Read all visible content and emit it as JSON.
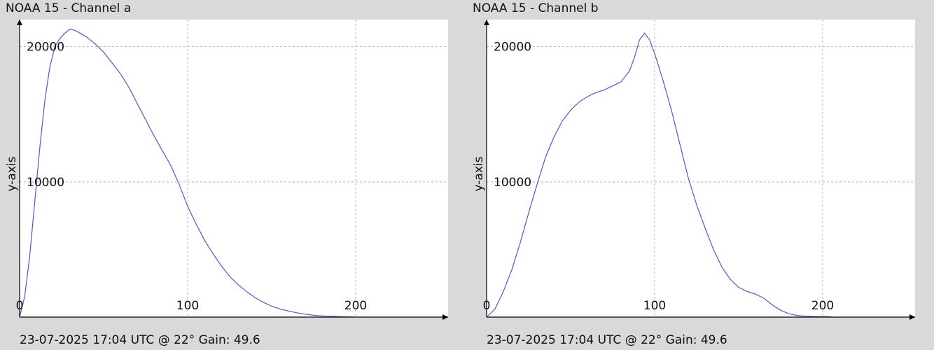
{
  "colors": {
    "background": "#d9d9d9",
    "plot_bg": "#ffffff",
    "series": "#5555cc",
    "grid": "#b4b4b4"
  },
  "panels": [
    {
      "title": "NOAA 15 - Channel a",
      "footer": "23-07-2025 17:04 UTC @ 22° Gain: 49.6"
    },
    {
      "title": "NOAA 15 - Channel b",
      "footer": "23-07-2025 17:04 UTC @ 22° Gain: 49.6"
    }
  ],
  "chart_data": [
    {
      "type": "line",
      "title": "NOAA 15 - Channel a",
      "xlabel": "",
      "ylabel": "y-axis",
      "xlim": [
        0,
        255
      ],
      "ylim": [
        0,
        22000
      ],
      "xticks": [
        0,
        100,
        200
      ],
      "yticks": [
        10000,
        20000
      ],
      "grid": true,
      "series": [
        {
          "x": [
            0,
            3,
            6,
            9,
            12,
            15,
            18,
            21,
            24,
            27,
            30,
            33,
            36,
            40,
            45,
            50,
            55,
            60,
            65,
            70,
            75,
            80,
            85,
            90,
            95,
            100,
            105,
            110,
            115,
            120,
            125,
            130,
            135,
            140,
            145,
            150,
            155,
            160,
            165,
            170,
            175,
            180,
            185,
            190,
            195,
            200
          ],
          "y": [
            0,
            1500,
            4500,
            8500,
            12500,
            16000,
            18500,
            20000,
            20600,
            21000,
            21300,
            21200,
            21000,
            20700,
            20200,
            19600,
            18800,
            18000,
            17000,
            15800,
            14600,
            13400,
            12300,
            11200,
            9800,
            8200,
            6900,
            5700,
            4700,
            3800,
            3000,
            2400,
            1900,
            1450,
            1100,
            800,
            600,
            450,
            320,
            220,
            140,
            90,
            60,
            30,
            15,
            0
          ]
        }
      ]
    },
    {
      "type": "line",
      "title": "NOAA 15 - Channel b",
      "xlabel": "",
      "ylabel": "y-axis",
      "xlim": [
        0,
        255
      ],
      "ylim": [
        0,
        22000
      ],
      "xticks": [
        0,
        100,
        200
      ],
      "yticks": [
        10000,
        20000
      ],
      "grid": true,
      "series": [
        {
          "x": [
            0,
            5,
            10,
            15,
            20,
            25,
            30,
            35,
            40,
            45,
            50,
            55,
            60,
            65,
            70,
            75,
            80,
            85,
            88,
            91,
            94,
            97,
            100,
            105,
            110,
            115,
            120,
            125,
            130,
            135,
            140,
            145,
            150,
            155,
            160,
            165,
            170,
            175,
            180,
            185,
            190,
            195,
            200,
            205
          ],
          "y": [
            0,
            600,
            1900,
            3500,
            5500,
            7700,
            9800,
            11800,
            13300,
            14500,
            15300,
            15900,
            16300,
            16600,
            16800,
            17100,
            17400,
            18200,
            19200,
            20500,
            21000,
            20500,
            19500,
            17500,
            15300,
            12800,
            10300,
            8300,
            6600,
            5000,
            3700,
            2800,
            2200,
            1900,
            1700,
            1400,
            900,
            500,
            250,
            120,
            60,
            40,
            30,
            20
          ]
        }
      ]
    }
  ]
}
